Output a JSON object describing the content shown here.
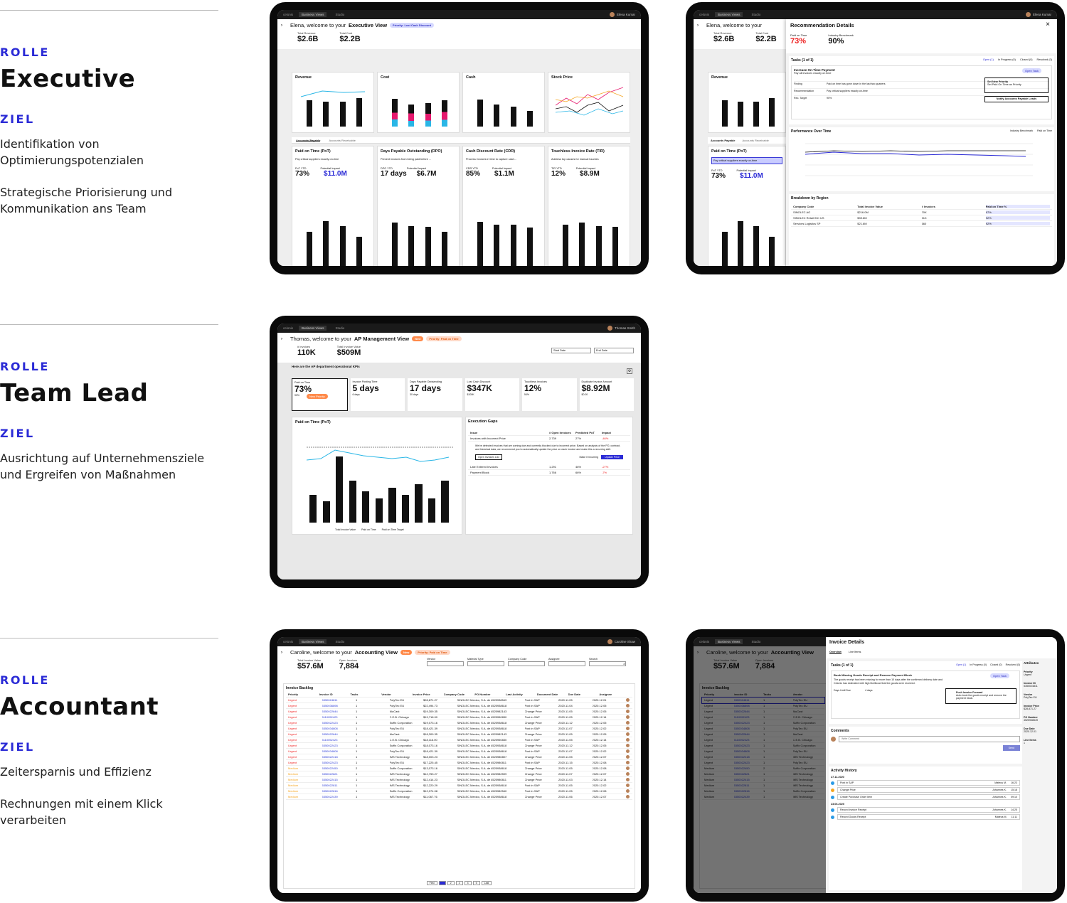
{
  "roles": [
    {
      "label": "ROLLE",
      "title": "Executive",
      "goal_label": "ZIEL",
      "desc": [
        "Identifikation von Optimierungspotenzialen",
        "Strategische Priorisierung und Kommunikation ans Team"
      ]
    },
    {
      "label": "ROLLE",
      "title": "Team Lead",
      "goal_label": "ZIEL",
      "desc": [
        "Ausrichtung auf Unternehmensziele und Ergreifen von Maßnahmen"
      ]
    },
    {
      "label": "ROLLE",
      "title": "Accountant",
      "goal_label": "ZIEL",
      "desc": [
        "Zeitersparnis und Effizienz",
        "Rechnungen mit einem Klick verarbeiten"
      ]
    }
  ],
  "topbar": {
    "brand": "celonis",
    "tab1": "Business Views",
    "tab2": "Studio"
  },
  "exec": {
    "user": "Elena Kumar",
    "welcome": "Elena, welcome to your",
    "view": "Executive View",
    "priority": "Priority: Lost Cash Discount",
    "kpis": [
      {
        "k": "Total Revenue",
        "v": "$2.6B"
      },
      {
        "k": "Total Cost",
        "v": "$2.2B"
      }
    ],
    "charts": [
      "Revenue",
      "Cost",
      "Cash",
      "Stock Price"
    ],
    "tabs": [
      "Accounts Payable",
      "Accounts Receivable"
    ],
    "cards": [
      {
        "t": "Paid on Time (PoT)",
        "s": "Pay critical suppliers exactly on-time",
        "a": "PoT YTD",
        "av": "73%",
        "b": "Potential Impact",
        "bv": "$11.0M"
      },
      {
        "t": "Days Payable Outstanding (DPO)",
        "s": "Prevent invoices from being paid before ...",
        "a": "DPO YTD",
        "av": "17 days",
        "b": "Potential Impact",
        "bv": "$6.7M"
      },
      {
        "t": "Cash Discount Rate (CDR)",
        "s": "Process invoices in time to capture cash...",
        "a": "CDR YTD",
        "av": "85%",
        "b": "Potential Impact",
        "bv": "$1.1M"
      },
      {
        "t": "Touchless Invoice Rate (TIR)",
        "s": "Address top causes for manual touches",
        "a": "TIR YTD",
        "av": "12%",
        "b": "Potential Impact",
        "bv": "$8.9M"
      }
    ]
  },
  "rec": {
    "title": "Recommendation Details",
    "kpis": [
      {
        "k": "Paid on Time",
        "v": "73%"
      },
      {
        "k": "Industry Benchmark",
        "v": "90%"
      }
    ],
    "tasks": "Tasks (1 of 1)",
    "filters": [
      "Open (1)",
      "In Progress (0)",
      "Closed (0)",
      "Resolved (0)"
    ],
    "task_title": "Increase On-Time Payment",
    "task_sub": "Pay all invoices exactly on time",
    "open_task": "Open Task",
    "finding": "Finding",
    "finding_v": "Paid on time has gone down in the last two quarters",
    "recommendation": "Recommendation",
    "recommendation_v": "Pay critical suppliers exactly on-time",
    "target": "Rec. Target",
    "target_v": "90%",
    "set_priority": "Set New Priority",
    "set_priority_sub": "Set Paid On Time as Priority",
    "notify": "Notify Accounts Payable Leads",
    "perf": "Performance Over Time",
    "legend": [
      "Industry Benchmark",
      "Paid on Time"
    ],
    "breakdown": "Breakdown by Region",
    "cols": [
      "Company Code",
      "Total Invoice Value",
      "# Invoices",
      "Paid on Time %"
    ],
    "rows": [
      [
        "SINOLEC AG",
        "$216.0M",
        "70K",
        "97%"
      ],
      [
        "SINOLEC Retail INC US",
        "$39.6M",
        "51K",
        "92%"
      ],
      [
        "Services Logistics SP",
        "$21.6M",
        "660",
        "92%"
      ]
    ]
  },
  "tl": {
    "user": "Thomas Smith",
    "welcome": "Thomas, welcome to your",
    "view": "AP Management View",
    "new": "New",
    "priority": "Priority: Paid on Time",
    "kpis": [
      {
        "k": "# Invoices",
        "v": "110K"
      },
      {
        "k": "Total Invoice Value",
        "v": "$509M"
      }
    ],
    "start": "Start Date",
    "end": "End Date",
    "section": "Here are the AP department operational KPIs",
    "tiles": [
      {
        "k": "Paid on Time",
        "v": "73%",
        "s": "90%",
        "badge": "New Priority"
      },
      {
        "k": "Invoice Posting Time",
        "v": "5 days",
        "s": "6 days"
      },
      {
        "k": "Days Payable Outstanding",
        "v": "17 days",
        "s": "30 days"
      },
      {
        "k": "Lost Cash Discount",
        "v": "$347K",
        "s": "$100K"
      },
      {
        "k": "Touchless Invoices",
        "v": "12%",
        "s": "54%"
      },
      {
        "k": "Duplicate Invoice Amount",
        "v": "$8.92M",
        "s": "$0.00"
      }
    ],
    "pot": "Paid on Time (PoT)",
    "pot_legend": [
      "Total Invoice Value",
      "Paid on Time",
      "Paid on Time Target"
    ],
    "gaps": "Execution Gaps",
    "gap_cols": [
      "Issue",
      "# Open Invoices",
      "Predicted PoT",
      "Impact"
    ],
    "gap_rows": [
      [
        "Invoices with Incorrect Price",
        "2,739",
        "27%",
        "-46%"
      ],
      [
        "Late Entered Invoices",
        "1,291",
        "46%",
        "-27%"
      ],
      [
        "Payment Block",
        "1,766",
        "66%",
        "-7%"
      ]
    ],
    "gap_text": "We've detected invoices that are coming due and currently blocked due to incorrect price. Based on analysis of the PO, contract, and historical data, we recommend you to automatically update the price on each invoice and make this a recurring skill.",
    "open_list": "Open Invoices List",
    "recurring": "Make it recurring",
    "update": "Update Price"
  },
  "acc": {
    "user": "Caroline Shaw",
    "welcome": "Caroline, welcome to your",
    "view": "Accounting View",
    "new": "New",
    "priority": "Priority: Paid on Time",
    "kpis": [
      {
        "k": "Total Invoice Value",
        "v": "$57.6M"
      },
      {
        "k": "Open Invoices",
        "v": "7,884"
      }
    ],
    "filters": [
      "Vendor",
      "Material Type",
      "Company Code",
      "Assignee",
      "Search"
    ],
    "backlog": "Invoice Backlog",
    "cols": [
      "Priority",
      "Invoice ID",
      "Tasks",
      "Vendor",
      "Invoice Price",
      "Company Code",
      "PO Number",
      "Last Activity",
      "Document Date",
      "Due Date",
      "Assignee"
    ],
    "rows": [
      [
        "Urgent",
        "5350024811",
        "1",
        "PolyTec EU",
        "$28,871.27",
        "SINOLEC Mexico, S.A. de C.V.",
        "4525938549",
        "Post in SAP",
        "2020.11.05",
        "2020.12.01"
      ],
      [
        "Urgent",
        "5350036898",
        "1",
        "PolyTec EU",
        "$22,494.73",
        "SINOLEC Mexico, S.A. de C.V.",
        "4525938618",
        "Post in SAP",
        "2020.11.04",
        "2020.12.05"
      ],
      [
        "Urgent",
        "5350022644",
        "1",
        "AluCast",
        "$19,309.35",
        "SINOLEC Mexico, S.A. de C.V.",
        "4525982143",
        "Change Price",
        "2020.11.05",
        "2020.12.05"
      ],
      [
        "Urgent",
        "5110052423",
        "1",
        "C.E.B. Chicago",
        "$19,718.00",
        "SINOLEC Mexico, S.A. de C.V.",
        "4525950830",
        "Post in SAP",
        "2020.11.05",
        "2020.12.14"
      ],
      [
        "Urgent",
        "5350022423",
        "1",
        "Suffix Corporation",
        "$19,073.16",
        "SINOLEC Mexico, S.A. de C.V.",
        "4525938618",
        "Change Price",
        "2020.11.12",
        "2020.12.05"
      ],
      [
        "Urgent",
        "5350034808",
        "1",
        "PolyTec EU",
        "$18,421.39",
        "SINOLEC Mexico, S.A. de C.V.",
        "4525938618",
        "Post in SAP",
        "2020.11.07",
        "2020.12.02"
      ],
      [
        "Urgent",
        "5350022644",
        "1",
        "AluCast",
        "$18,309.35",
        "SINOLEC Mexico, S.A. de C.V.",
        "4525982143",
        "Change Price",
        "2020.11.05",
        "2020.12.05"
      ],
      [
        "Urgent",
        "5110052423",
        "1",
        "C.E.B. Chicago",
        "$18,116.00",
        "SINOLEC Mexico, S.A. de C.V.",
        "4525950830",
        "Post in SAP",
        "2020.11.05",
        "2020.12.14"
      ],
      [
        "Urgent",
        "5350022423",
        "1",
        "Suffix Corporation",
        "$18,073.16",
        "SINOLEC Mexico, S.A. de C.V.",
        "4525938618",
        "Change Price",
        "2020.11.12",
        "2020.12.05"
      ],
      [
        "Urgent",
        "5350034808",
        "1",
        "PolyTec EU",
        "$18,421.39",
        "SINOLEC Mexico, S.A. de C.V.",
        "4525938618",
        "Post in SAP",
        "2020.11.07",
        "2020.12.02"
      ],
      [
        "Urgent",
        "5350022418",
        "1",
        "IMS Technology",
        "$18,003.23",
        "SINOLEC Mexico, S.A. de C.V.",
        "4525980807",
        "Change Price",
        "2020.11.05",
        "2020.12.07"
      ],
      [
        "Urgent",
        "5350022423",
        "1",
        "PolyTec EU",
        "$17,225.45",
        "SINOLEC Mexico, S.A. de C.V.",
        "4525980811",
        "Post in SAP",
        "2020.11.15",
        "2020.12.08"
      ],
      [
        "Medium",
        "5350022450",
        "2",
        "Suffix Corporation",
        "$13,073.16",
        "SINOLEC Mexico, S.A. de C.V.",
        "4525938618",
        "Change Price",
        "2020.11.05",
        "2020.12.08"
      ],
      [
        "Medium",
        "5350022821",
        "1",
        "IMS Technology",
        "$12,753.27",
        "SINOLEC Mexico, S.A. de C.V.",
        "4525982599",
        "Change Price",
        "2020.11.07",
        "2020.12.07"
      ],
      [
        "Medium",
        "5350022415",
        "1",
        "IMS Technology",
        "$12,414.23",
        "SINOLEC Mexico, S.A. de C.V.",
        "4525980811",
        "Change Price",
        "2020.11.03",
        "2020.12.14"
      ],
      [
        "Medium",
        "5350022811",
        "1",
        "IMS Technology",
        "$12,220.29",
        "SINOLEC Mexico, S.A. de C.V.",
        "4525938618",
        "Post in SAP",
        "2020.11.05",
        "2020.12.02"
      ],
      [
        "Medium",
        "5350022816",
        "1",
        "Suffix Corporation",
        "$12,074.08",
        "SINOLEC Mexico, S.A. de C.V.",
        "4525982540",
        "Post in SAP",
        "2020.11.05",
        "2020.12.08"
      ],
      [
        "Medium",
        "5350022439",
        "1",
        "IMS Technology",
        "$11,067.76",
        "SINOLEC Mexico, S.A. de C.V.",
        "4525938618",
        "Change Price",
        "2020.11.06",
        "2020.12.07"
      ]
    ],
    "pages": [
      "First",
      "1",
      "2",
      "3",
      "4",
      "5",
      "Last"
    ]
  },
  "inv": {
    "title": "Invoice Details",
    "tabs": [
      "Overview",
      "Line Items"
    ],
    "tasks": "Tasks (1 of 1)",
    "filters": [
      "Open (1)",
      "In Progress (0)",
      "Closed (0)",
      "Resolved (0)"
    ],
    "task_title": "Book Missing Goods Receipt and Remove Payment Block",
    "task_text": "The goods receipt has been missing for more than 10 days after the confirmed delivery date and Celonis has estimated with high likelihood that the goods were received.",
    "open_task": "Open Task",
    "days_label": "Days Until Due",
    "days_value": "4 days",
    "push": "Push Invoice Forward",
    "push_sub": "Auto-book the goods receipt and remove the payment block.",
    "comments": "Comments",
    "comment_ph": "Write Comment",
    "send": "Send",
    "activity": "Activity History",
    "d1": "27.11.2020",
    "d2": "23.06.2020",
    "acts": [
      [
        "Post in SAP",
        "Mateus M.",
        "16:23"
      ],
      [
        "Change Price",
        "Johannes K.",
        "15:18"
      ],
      [
        "Create Purchase Order Item",
        "Johannes K.",
        "09:10"
      ],
      [
        "Record Invoice Receipt",
        "Johannes K.",
        "14:25"
      ],
      [
        "Record Goods Receipt",
        "Mateus M.",
        "11:11"
      ]
    ],
    "attrs_title": "Attributes",
    "attrs": [
      [
        "Priority",
        "Urgent"
      ],
      [
        "Invoice ID",
        "5350024811"
      ],
      [
        "Vendor",
        "PolyTec EU"
      ],
      [
        "Invoice Price",
        "$28,871.27"
      ],
      [
        "PO Number",
        "4525938549"
      ],
      [
        "Due Date",
        "2020.12.01"
      ],
      [
        "Line Items",
        "1"
      ]
    ]
  },
  "colors": {
    "accent": "#2b2bd6",
    "dark": "#111111",
    "orange": "#ff8a4a",
    "red": "#e22222"
  }
}
